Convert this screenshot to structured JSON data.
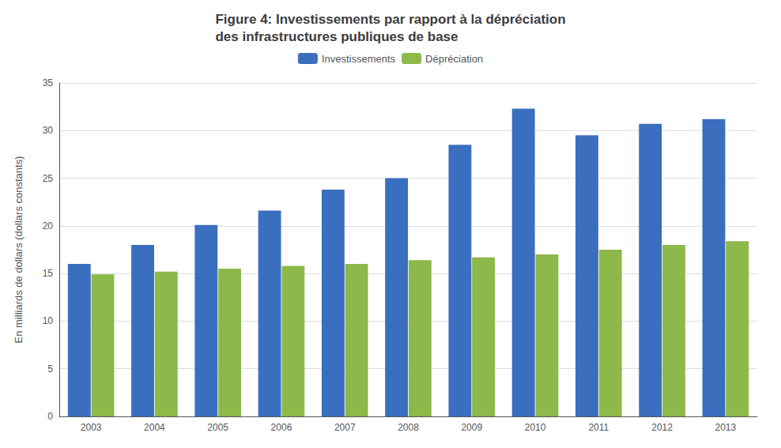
{
  "chart_data": {
    "type": "bar",
    "title": "Figure 4: Investissements par rapport à la dépréciation\ndes infrastructures publiques de base",
    "categories": [
      "2003",
      "2004",
      "2005",
      "2006",
      "2007",
      "2008",
      "2009",
      "2010",
      "2011",
      "2012",
      "2013"
    ],
    "series": [
      {
        "name": "Investissements",
        "color": "#3A6EBF",
        "values": [
          16.0,
          18.0,
          20.1,
          21.6,
          23.8,
          25.0,
          28.5,
          32.3,
          29.5,
          30.7,
          31.2
        ]
      },
      {
        "name": "Dépréciation",
        "color": "#8DB84A",
        "values": [
          14.9,
          15.2,
          15.5,
          15.8,
          16.0,
          16.4,
          16.7,
          17.0,
          17.5,
          18.0,
          18.4
        ]
      }
    ],
    "ylabel": "En milliards de dollars (dollars constants)",
    "ylim": [
      0,
      35
    ],
    "yticks": [
      0,
      5,
      10,
      15,
      20,
      25,
      30,
      35
    ],
    "grid": true,
    "legend": "top"
  }
}
